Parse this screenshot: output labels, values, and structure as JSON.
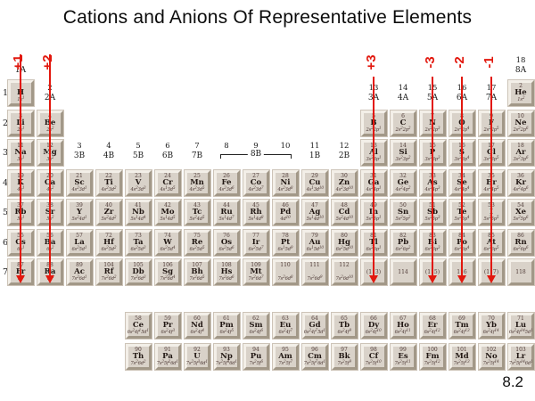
{
  "title": "Cations and Anions Of Representative Elements",
  "slide_number": "8.2",
  "colors": {
    "arrow_red": "#e2180e",
    "tile_face": "#d9d2c9",
    "tile_light": "#f3efe8",
    "tile_dark": "#a29888",
    "tile_outline": "#cdc4b8",
    "text_dark": "#4e3a36",
    "symbol": "#211713"
  },
  "charge_arrows": [
    {
      "label": "+1",
      "group": 1
    },
    {
      "label": "+2",
      "group": 2
    },
    {
      "label": "+3",
      "group": 13
    },
    {
      "label": "-3",
      "group": 15
    },
    {
      "label": "-2",
      "group": 16
    },
    {
      "label": "-1",
      "group": 17
    }
  ],
  "period_labels": [
    "1",
    "2",
    "3",
    "4",
    "5",
    "6",
    "7"
  ],
  "group_labels": [
    {
      "number": "1",
      "letter": "1A",
      "col": 1,
      "pos": "above"
    },
    {
      "number": "2",
      "letter": "2A",
      "col": 2,
      "pos": "row1"
    },
    {
      "number": "3",
      "letter": "3B",
      "col": 3,
      "pos": "row3"
    },
    {
      "number": "4",
      "letter": "4B",
      "col": 4,
      "pos": "row3"
    },
    {
      "number": "5",
      "letter": "5B",
      "col": 5,
      "pos": "row3"
    },
    {
      "number": "6",
      "letter": "6B",
      "col": 6,
      "pos": "row3"
    },
    {
      "number": "7",
      "letter": "7B",
      "col": 7,
      "pos": "row3"
    },
    {
      "number": "8",
      "letter": "",
      "col": 8,
      "pos": "row3"
    },
    {
      "number": "9",
      "letter": "",
      "col": 9,
      "pos": "row3"
    },
    {
      "number": "10",
      "letter": "",
      "col": 10,
      "pos": "row3"
    },
    {
      "number": "11",
      "letter": "1B",
      "col": 11,
      "pos": "row3"
    },
    {
      "number": "12",
      "letter": "2B",
      "col": 12,
      "pos": "row3"
    },
    {
      "number": "13",
      "letter": "3A",
      "col": 13,
      "pos": "row1"
    },
    {
      "number": "14",
      "letter": "4A",
      "col": 14,
      "pos": "row1"
    },
    {
      "number": "15",
      "letter": "5A",
      "col": 15,
      "pos": "row1"
    },
    {
      "number": "16",
      "letter": "6A",
      "col": 16,
      "pos": "row1"
    },
    {
      "number": "17",
      "letter": "7A",
      "col": 17,
      "pos": "row1"
    },
    {
      "number": "18",
      "letter": "8A",
      "col": 18,
      "pos": "above"
    }
  ],
  "bracket_label": "8B",
  "elements": [
    {
      "n": "1",
      "s": "H",
      "c": "1s^1",
      "row": 1,
      "col": 1
    },
    {
      "n": "2",
      "s": "He",
      "c": "1s^2",
      "row": 1,
      "col": 18
    },
    {
      "n": "3",
      "s": "Li",
      "c": "2s^1",
      "row": 2,
      "col": 1
    },
    {
      "n": "4",
      "s": "Be",
      "c": "2s^2",
      "row": 2,
      "col": 2
    },
    {
      "n": "5",
      "s": "B",
      "c": "2s^2 2p^1",
      "row": 2,
      "col": 13
    },
    {
      "n": "6",
      "s": "C",
      "c": "2s^2 2p^2",
      "row": 2,
      "col": 14
    },
    {
      "n": "7",
      "s": "N",
      "c": "2s^2 2p^3",
      "row": 2,
      "col": 15
    },
    {
      "n": "8",
      "s": "O",
      "c": "2s^2 2p^4",
      "row": 2,
      "col": 16
    },
    {
      "n": "9",
      "s": "F",
      "c": "2s^2 2p^5",
      "row": 2,
      "col": 17
    },
    {
      "n": "10",
      "s": "Ne",
      "c": "2s^2 2p^6",
      "row": 2,
      "col": 18
    },
    {
      "n": "11",
      "s": "Na",
      "c": "3s^1",
      "row": 3,
      "col": 1
    },
    {
      "n": "12",
      "s": "Mg",
      "c": "3s^2",
      "row": 3,
      "col": 2
    },
    {
      "n": "13",
      "s": "Al",
      "c": "3s^2 3p^1",
      "row": 3,
      "col": 13
    },
    {
      "n": "14",
      "s": "Si",
      "c": "3s^2 3p^2",
      "row": 3,
      "col": 14
    },
    {
      "n": "15",
      "s": "P",
      "c": "3s^2 3p^3",
      "row": 3,
      "col": 15
    },
    {
      "n": "16",
      "s": "S",
      "c": "3s^2 3p^4",
      "row": 3,
      "col": 16
    },
    {
      "n": "17",
      "s": "Cl",
      "c": "3s^2 3p^5",
      "row": 3,
      "col": 17
    },
    {
      "n": "18",
      "s": "Ar",
      "c": "3s^2 3p^6",
      "row": 3,
      "col": 18
    },
    {
      "n": "19",
      "s": "K",
      "c": "4s^1",
      "row": 4,
      "col": 1
    },
    {
      "n": "20",
      "s": "Ca",
      "c": "4s^2",
      "row": 4,
      "col": 2
    },
    {
      "n": "21",
      "s": "Sc",
      "c": "4s^2 3d^1",
      "row": 4,
      "col": 3
    },
    {
      "n": "22",
      "s": "Ti",
      "c": "4s^2 3d^2",
      "row": 4,
      "col": 4
    },
    {
      "n": "23",
      "s": "V",
      "c": "4s^2 3d^3",
      "row": 4,
      "col": 5
    },
    {
      "n": "24",
      "s": "Cr",
      "c": "4s^1 3d^5",
      "row": 4,
      "col": 6
    },
    {
      "n": "25",
      "s": "Mn",
      "c": "4s^2 3d^5",
      "row": 4,
      "col": 7
    },
    {
      "n": "26",
      "s": "Fe",
      "c": "4s^2 3d^6",
      "row": 4,
      "col": 8
    },
    {
      "n": "27",
      "s": "Co",
      "c": "4s^2 3d^7",
      "row": 4,
      "col": 9
    },
    {
      "n": "28",
      "s": "Ni",
      "c": "4s^2 3d^8",
      "row": 4,
      "col": 10
    },
    {
      "n": "29",
      "s": "Cu",
      "c": "4s^1 3d^10",
      "row": 4,
      "col": 11
    },
    {
      "n": "30",
      "s": "Zn",
      "c": "4s^2 3d^10",
      "row": 4,
      "col": 12
    },
    {
      "n": "31",
      "s": "Ga",
      "c": "4s^2 4p^1",
      "row": 4,
      "col": 13
    },
    {
      "n": "32",
      "s": "Ge",
      "c": "4s^2 4p^2",
      "row": 4,
      "col": 14
    },
    {
      "n": "33",
      "s": "As",
      "c": "4s^2 4p^3",
      "row": 4,
      "col": 15
    },
    {
      "n": "34",
      "s": "Se",
      "c": "4s^2 4p^4",
      "row": 4,
      "col": 16
    },
    {
      "n": "35",
      "s": "Br",
      "c": "4s^2 4p^5",
      "row": 4,
      "col": 17
    },
    {
      "n": "36",
      "s": "Kr",
      "c": "4s^2 4p^6",
      "row": 4,
      "col": 18
    },
    {
      "n": "37",
      "s": "Rb",
      "c": "5s^1",
      "row": 5,
      "col": 1
    },
    {
      "n": "38",
      "s": "Sr",
      "c": "5s^2",
      "row": 5,
      "col": 2
    },
    {
      "n": "39",
      "s": "Y",
      "c": "5s^2 4d^1",
      "row": 5,
      "col": 3
    },
    {
      "n": "40",
      "s": "Zr",
      "c": "5s^2 4d^2",
      "row": 5,
      "col": 4
    },
    {
      "n": "41",
      "s": "Nb",
      "c": "5s^1 4d^4",
      "row": 5,
      "col": 5
    },
    {
      "n": "42",
      "s": "Mo",
      "c": "5s^1 4d^5",
      "row": 5,
      "col": 6
    },
    {
      "n": "43",
      "s": "Tc",
      "c": "5s^2 4d^5",
      "row": 5,
      "col": 7
    },
    {
      "n": "44",
      "s": "Ru",
      "c": "5s^1 4d^7",
      "row": 5,
      "col": 8
    },
    {
      "n": "45",
      "s": "Rh",
      "c": "5s^1 4d^8",
      "row": 5,
      "col": 9
    },
    {
      "n": "46",
      "s": "Pd",
      "c": "4d^10",
      "row": 5,
      "col": 10
    },
    {
      "n": "47",
      "s": "Ag",
      "c": "5s^1 4d^10",
      "row": 5,
      "col": 11
    },
    {
      "n": "48",
      "s": "Cd",
      "c": "5s^2 4d^10",
      "row": 5,
      "col": 12
    },
    {
      "n": "49",
      "s": "In",
      "c": "5s^2 5p^1",
      "row": 5,
      "col": 13
    },
    {
      "n": "50",
      "s": "Sn",
      "c": "5s^2 5p^2",
      "row": 5,
      "col": 14
    },
    {
      "n": "51",
      "s": "Sb",
      "c": "5s^2 5p^3",
      "row": 5,
      "col": 15
    },
    {
      "n": "52",
      "s": "Te",
      "c": "5s^2 5p^4",
      "row": 5,
      "col": 16
    },
    {
      "n": "53",
      "s": "I",
      "c": "5s^2 5p^5",
      "row": 5,
      "col": 17
    },
    {
      "n": "54",
      "s": "Xe",
      "c": "5s^2 5p^6",
      "row": 5,
      "col": 18
    },
    {
      "n": "55",
      "s": "Cs",
      "c": "6s^1",
      "row": 6,
      "col": 1
    },
    {
      "n": "56",
      "s": "Ba",
      "c": "6s^2",
      "row": 6,
      "col": 2
    },
    {
      "n": "57",
      "s": "La",
      "c": "6s^2 5d^1",
      "row": 6,
      "col": 3
    },
    {
      "n": "72",
      "s": "Hf",
      "c": "6s^2 5d^2",
      "row": 6,
      "col": 4
    },
    {
      "n": "73",
      "s": "Ta",
      "c": "6s^2 5d^3",
      "row": 6,
      "col": 5
    },
    {
      "n": "74",
      "s": "W",
      "c": "6s^2 5d^4",
      "row": 6,
      "col": 6
    },
    {
      "n": "75",
      "s": "Re",
      "c": "6s^2 5d^5",
      "row": 6,
      "col": 7
    },
    {
      "n": "76",
      "s": "Os",
      "c": "6s^2 5d^6",
      "row": 6,
      "col": 8
    },
    {
      "n": "77",
      "s": "Ir",
      "c": "6s^2 5d^7",
      "row": 6,
      "col": 9
    },
    {
      "n": "78",
      "s": "Pt",
      "c": "6s^1 5d^9",
      "row": 6,
      "col": 10
    },
    {
      "n": "79",
      "s": "Au",
      "c": "6s^1 5d^10",
      "row": 6,
      "col": 11
    },
    {
      "n": "80",
      "s": "Hg",
      "c": "6s^2 5d^10",
      "row": 6,
      "col": 12
    },
    {
      "n": "81",
      "s": "Tl",
      "c": "6s^2 6p^1",
      "row": 6,
      "col": 13
    },
    {
      "n": "82",
      "s": "Pb",
      "c": "6s^2 6p^2",
      "row": 6,
      "col": 14
    },
    {
      "n": "83",
      "s": "Bi",
      "c": "6s^2 6p^3",
      "row": 6,
      "col": 15
    },
    {
      "n": "84",
      "s": "Po",
      "c": "6s^2 6p^4",
      "row": 6,
      "col": 16
    },
    {
      "n": "85",
      "s": "At",
      "c": "6s^2 6p^5",
      "row": 6,
      "col": 17
    },
    {
      "n": "86",
      "s": "Rn",
      "c": "6s^2 6p^6",
      "row": 6,
      "col": 18
    },
    {
      "n": "87",
      "s": "Fr",
      "c": "7s^1",
      "row": 7,
      "col": 1
    },
    {
      "n": "88",
      "s": "Ra",
      "c": "7s^2",
      "row": 7,
      "col": 2
    },
    {
      "n": "89",
      "s": "Ac",
      "c": "7s^2 6d^1",
      "row": 7,
      "col": 3
    },
    {
      "n": "104",
      "s": "Rf",
      "c": "7s^2 6d^2",
      "row": 7,
      "col": 4
    },
    {
      "n": "105",
      "s": "Db",
      "c": "7s^2 6d^3",
      "row": 7,
      "col": 5
    },
    {
      "n": "106",
      "s": "Sg",
      "c": "7s^2 6d^4",
      "row": 7,
      "col": 6
    },
    {
      "n": "107",
      "s": "Bh",
      "c": "7s^2 6d^5",
      "row": 7,
      "col": 7
    },
    {
      "n": "108",
      "s": "Hs",
      "c": "7s^2 6d^6",
      "row": 7,
      "col": 8
    },
    {
      "n": "109",
      "s": "Mt",
      "c": "7s^2 6d^7",
      "row": 7,
      "col": 9
    },
    {
      "n": "110",
      "s": "",
      "c": "7s^2 6d^8",
      "row": 7,
      "col": 10
    },
    {
      "n": "111",
      "s": "",
      "c": "7s^2 6d^9",
      "row": 7,
      "col": 11
    },
    {
      "n": "112",
      "s": "",
      "c": "7s^2 6d^10",
      "row": 7,
      "col": 12
    },
    {
      "n": "(113)",
      "s": "",
      "c": "",
      "row": 7,
      "col": 13
    },
    {
      "n": "114",
      "s": "",
      "c": "",
      "row": 7,
      "col": 14
    },
    {
      "n": "(115)",
      "s": "",
      "c": "",
      "row": 7,
      "col": 15
    },
    {
      "n": "116",
      "s": "",
      "c": "",
      "row": 7,
      "col": 16
    },
    {
      "n": "(117)",
      "s": "",
      "c": "",
      "row": 7,
      "col": 17
    },
    {
      "n": "118",
      "s": "",
      "c": "",
      "row": 7,
      "col": 18
    }
  ],
  "lanthanides": [
    {
      "n": "58",
      "s": "Ce",
      "c": "6s^2 4f^1 5d^1",
      "col": 5
    },
    {
      "n": "59",
      "s": "Pr",
      "c": "6s^2 4f^3",
      "col": 6
    },
    {
      "n": "60",
      "s": "Nd",
      "c": "6s^2 4f^4",
      "col": 7
    },
    {
      "n": "61",
      "s": "Pm",
      "c": "6s^2 4f^5",
      "col": 8
    },
    {
      "n": "62",
      "s": "Sm",
      "c": "6s^2 4f^6",
      "col": 9
    },
    {
      "n": "63",
      "s": "Eu",
      "c": "6s^2 4f^7",
      "col": 10
    },
    {
      "n": "64",
      "s": "Gd",
      "c": "6s^2 4f^7 5d^1",
      "col": 11
    },
    {
      "n": "65",
      "s": "Tb",
      "c": "6s^2 4f^9",
      "col": 12
    },
    {
      "n": "66",
      "s": "Dy",
      "c": "6s^2 4f^10",
      "col": 13
    },
    {
      "n": "67",
      "s": "Ho",
      "c": "6s^2 4f^11",
      "col": 14
    },
    {
      "n": "68",
      "s": "Er",
      "c": "6s^2 4f^12",
      "col": 15
    },
    {
      "n": "69",
      "s": "Tm",
      "c": "6s^2 4f^13",
      "col": 16
    },
    {
      "n": "70",
      "s": "Yb",
      "c": "6s^2 4f^14",
      "col": 17
    },
    {
      "n": "71",
      "s": "Lu",
      "c": "6s^2 4f^14 5d^1",
      "col": 18
    }
  ],
  "actinides": [
    {
      "n": "90",
      "s": "Th",
      "c": "7s^2 6d^2",
      "col": 5
    },
    {
      "n": "91",
      "s": "Pa",
      "c": "7s^2 5f^2 6d^1",
      "col": 6
    },
    {
      "n": "92",
      "s": "U",
      "c": "7s^2 5f^3 6d^1",
      "col": 7
    },
    {
      "n": "93",
      "s": "Np",
      "c": "7s^2 5f^4 6d^1",
      "col": 8
    },
    {
      "n": "94",
      "s": "Pu",
      "c": "7s^2 5f^6",
      "col": 9
    },
    {
      "n": "95",
      "s": "Am",
      "c": "7s^2 5f^7",
      "col": 10
    },
    {
      "n": "96",
      "s": "Cm",
      "c": "7s^2 5f^7 6d^1",
      "col": 11
    },
    {
      "n": "97",
      "s": "Bk",
      "c": "7s^2 5f^9",
      "col": 12
    },
    {
      "n": "98",
      "s": "Cf",
      "c": "7s^2 5f^10",
      "col": 13
    },
    {
      "n": "99",
      "s": "Es",
      "c": "7s^2 5f^11",
      "col": 14
    },
    {
      "n": "100",
      "s": "Fm",
      "c": "7s^2 5f^12",
      "col": 15
    },
    {
      "n": "101",
      "s": "Md",
      "c": "7s^2 5f^13",
      "col": 16
    },
    {
      "n": "102",
      "s": "No",
      "c": "7s^2 5f^14",
      "col": 17
    },
    {
      "n": "103",
      "s": "Lr",
      "c": "7s^2 5f^14 6d^1",
      "col": 18
    }
  ]
}
